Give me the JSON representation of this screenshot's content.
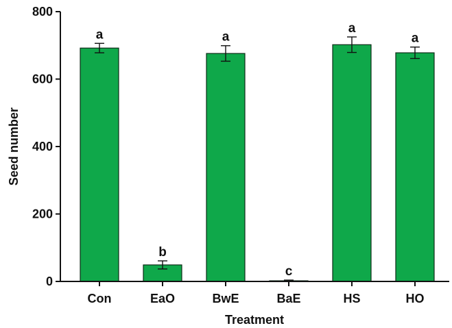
{
  "chart_data": {
    "type": "bar",
    "title": "",
    "xlabel": "Treatment",
    "ylabel": "Seed number",
    "categories": [
      "Con",
      "EaO",
      "BwE",
      "BaE",
      "HS",
      "HO"
    ],
    "values": [
      692,
      49,
      676,
      2,
      702,
      678
    ],
    "errors": [
      14,
      12,
      23,
      2,
      23,
      17
    ],
    "significance_letters": [
      "a",
      "b",
      "a",
      "c",
      "a",
      "a"
    ],
    "ylim": [
      0,
      800
    ],
    "yticks": [
      0,
      200,
      400,
      600,
      800
    ],
    "grid": false,
    "legend": "none",
    "bar_color": "#0fa84a",
    "bar_edge_color": "#0d2b17"
  }
}
